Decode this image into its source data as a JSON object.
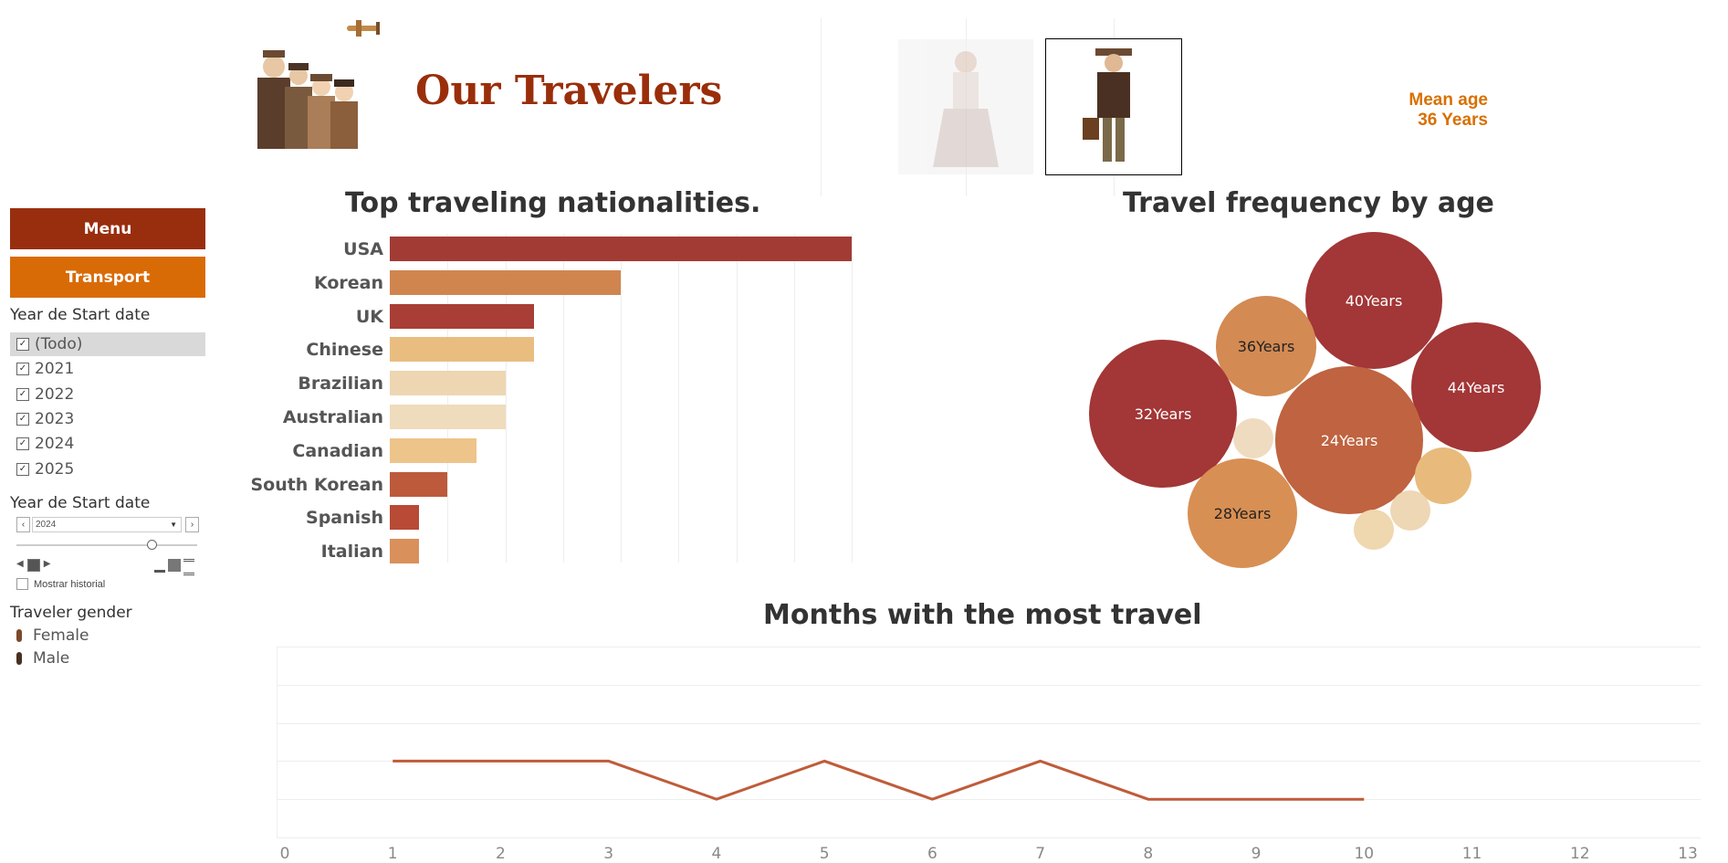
{
  "header": {
    "title": "Our Travelers",
    "mean_age_label": "Mean age",
    "mean_age_value": "36 Years"
  },
  "sidebar": {
    "menu_label": "Menu",
    "transport_label": "Transport",
    "year_filter_label": "Year de Start date",
    "year_options": [
      {
        "label": "(Todo)",
        "checked": true
      },
      {
        "label": "2021",
        "checked": true
      },
      {
        "label": "2022",
        "checked": true
      },
      {
        "label": "2023",
        "checked": true
      },
      {
        "label": "2024",
        "checked": true
      },
      {
        "label": "2025",
        "checked": true
      }
    ],
    "year_slider_label": "Year de Start date",
    "year_slider_value": "2024",
    "history_label": "Mostrar historial",
    "gender_label": "Traveler gender",
    "genders": [
      "Female",
      "Male"
    ]
  },
  "nationalities_chart": {
    "title": "Top traveling nationalities.",
    "colors": [
      "#a33b35",
      "#d0854f",
      "#a83e35",
      "#e9bd80",
      "#edd6b1",
      "#efdcbc",
      "#edc48a",
      "#bc5a3b",
      "#b84a36",
      "#d9905b"
    ]
  },
  "age_chart": {
    "title": "Travel frequency by age",
    "bubbles": [
      {
        "label": "40Years",
        "color": "#a33636",
        "text_color": "#ffffff"
      },
      {
        "label": "36Years",
        "color": "#d38a53",
        "text_color": "#222222"
      },
      {
        "label": "44Years",
        "color": "#a33636",
        "text_color": "#ffffff"
      },
      {
        "label": "32Years",
        "color": "#a33636",
        "text_color": "#ffffff"
      },
      {
        "label": "24Years",
        "color": "#bf6340",
        "text_color": "#ffffff"
      },
      {
        "label": "28Years",
        "color": "#d88f53",
        "text_color": "#222222"
      },
      {
        "label": "",
        "color": "#efdcc0",
        "text_color": "#222222"
      },
      {
        "label": "",
        "color": "#e8bb7c",
        "text_color": "#222222"
      },
      {
        "label": "",
        "color": "#eed7b4",
        "text_color": "#222222"
      },
      {
        "label": "",
        "color": "#efd7b0",
        "text_color": "#222222"
      }
    ]
  },
  "months_chart": {
    "title": "Months with the most travel",
    "line_color": "#bf5c3a"
  },
  "chart_data": [
    {
      "type": "bar",
      "title": "Top traveling nationalities.",
      "categories": [
        "USA",
        "Korean",
        "UK",
        "Chinese",
        "Brazilian",
        "Australian",
        "Canadian",
        "South Korean",
        "Spanish",
        "Italian"
      ],
      "values": [
        16,
        8,
        5,
        5,
        4,
        4,
        3,
        2,
        1,
        1
      ],
      "orientation": "horizontal",
      "xlim": [
        0,
        16
      ],
      "grid": true
    },
    {
      "type": "scatter",
      "title": "Travel frequency by age",
      "labels": [
        "40Years",
        "36Years",
        "44Years",
        "32Years",
        "24Years",
        "28Years"
      ],
      "note_type": "packed bubble"
    },
    {
      "type": "line",
      "title": "Months with the most travel",
      "x": [
        1,
        2,
        3,
        4,
        5,
        6,
        7,
        8,
        9,
        10
      ],
      "y": [
        2,
        2,
        2,
        1,
        2,
        1,
        2,
        1,
        1,
        1
      ],
      "xticks": [
        0,
        1,
        2,
        3,
        4,
        5,
        6,
        7,
        8,
        9,
        10,
        11,
        12,
        13
      ],
      "xlim": [
        0,
        13
      ],
      "ylim": [
        0,
        5
      ],
      "grid": true
    }
  ]
}
